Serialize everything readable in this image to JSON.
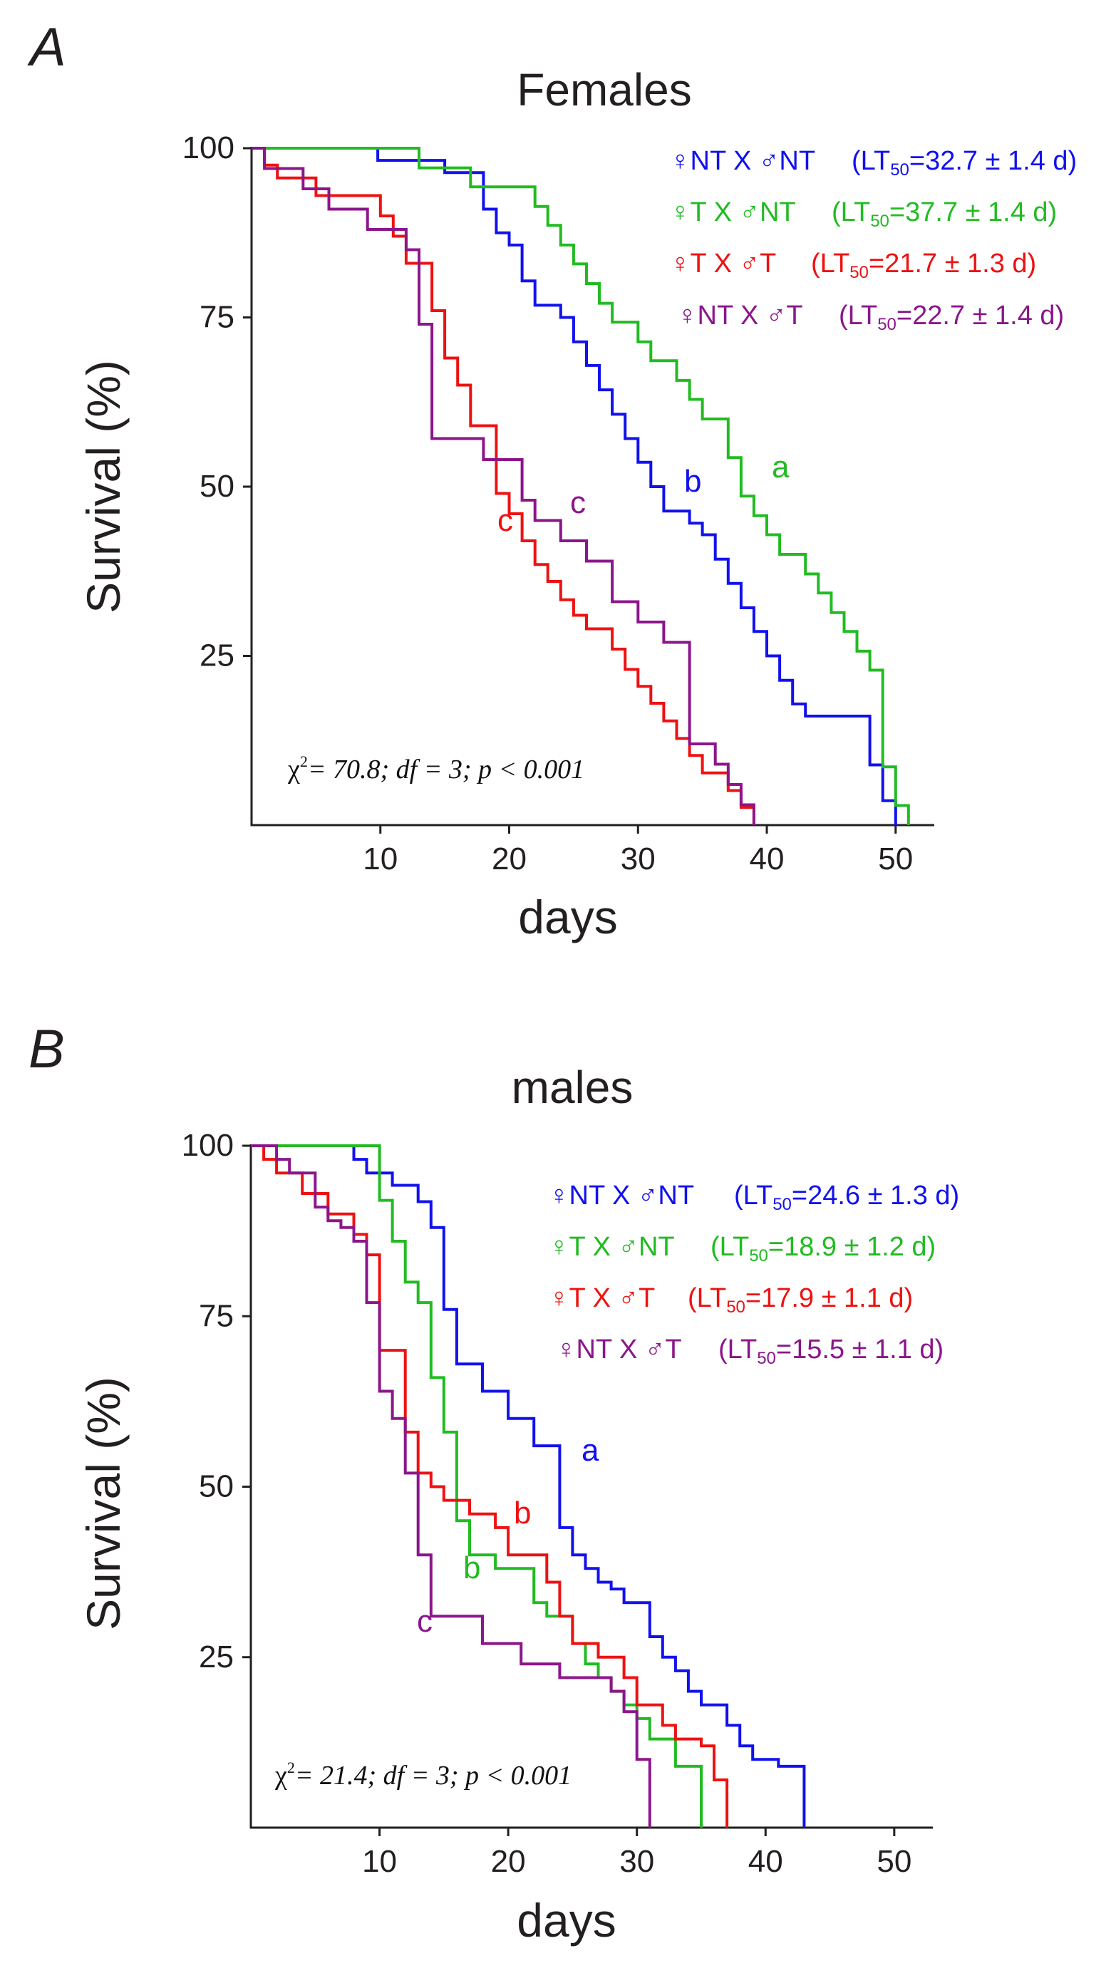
{
  "chart_data": [
    {
      "type": "line",
      "panel_label": "A",
      "title": "Females",
      "xlabel": "days",
      "ylabel": "Survival (%)",
      "xlim": [
        0,
        53
      ],
      "ylim": [
        0,
        100
      ],
      "xticks": [
        10,
        20,
        30,
        40,
        50
      ],
      "yticks": [
        25,
        50,
        75,
        100
      ],
      "grid": false,
      "legend": [
        {
          "name": "♀NT X ♂NT",
          "stat_prefix": "(LT",
          "stat_sub": "50",
          "stat_suffix": "=32.7 ± 1.4 d)",
          "color": "#1111ee"
        },
        {
          "name": "♀T X ♂NT",
          "stat_prefix": "(LT",
          "stat_sub": "50",
          "stat_suffix": "=37.7 ± 1.4 d)",
          "color": "#22bb22"
        },
        {
          "name": "♀T X ♂T",
          "stat_prefix": "(LT",
          "stat_sub": "50",
          "stat_suffix": "=21.7 ± 1.3 d)",
          "color": "#ee1111"
        },
        {
          "name": "♀NT X ♂T",
          "stat_prefix": "(LT",
          "stat_sub": "50",
          "stat_suffix": "=22.7 ± 1.4 d)",
          "color": "#8b168b"
        }
      ],
      "series": [
        {
          "name": "♀NT X ♂NT",
          "color": "#1111ee",
          "x": [
            0,
            9.8,
            15,
            18,
            19,
            20,
            21,
            22,
            24,
            25,
            26,
            27,
            28,
            29,
            30,
            31,
            32,
            34,
            35,
            36,
            37,
            38,
            39,
            40,
            41,
            42,
            43,
            47,
            48,
            49,
            50
          ],
          "y": [
            100,
            98.2,
            96.4,
            91,
            87.5,
            85.7,
            80.4,
            76.8,
            75,
            71.4,
            67.9,
            64.3,
            60.7,
            57.1,
            53.6,
            50,
            46.4,
            44.6,
            42.9,
            39.3,
            35.7,
            32.1,
            28.6,
            25,
            21.4,
            17.9,
            16.1,
            16.1,
            8.9,
            3.6,
            0
          ]
        },
        {
          "name": "♀T X ♂NT",
          "color": "#22bb22",
          "x": [
            0,
            13,
            17,
            22,
            23,
            24,
            25,
            26,
            27,
            28,
            30,
            31,
            33,
            34,
            35,
            37,
            38,
            39,
            40,
            41,
            43,
            44,
            45,
            46,
            47,
            48,
            49,
            50,
            51
          ],
          "y": [
            100,
            97.1,
            94.3,
            91.4,
            88.6,
            85.7,
            82.9,
            80,
            77.1,
            74.3,
            71.4,
            68.6,
            65.7,
            62.9,
            60,
            54.3,
            48.6,
            45.7,
            42.9,
            40,
            37.1,
            34.3,
            31.4,
            28.6,
            25.7,
            22.9,
            8.6,
            2.9,
            0
          ]
        },
        {
          "name": "♀T X ♂T",
          "color": "#ee1111",
          "x": [
            0,
            1,
            2,
            5,
            10,
            11,
            12,
            14,
            15,
            16,
            17,
            19,
            20,
            21,
            22,
            23,
            24,
            25,
            26,
            28,
            29,
            30,
            31,
            32,
            33,
            34,
            35,
            37,
            38,
            39
          ],
          "y": [
            100,
            97.5,
            95.6,
            93,
            90,
            87,
            83,
            76,
            69,
            65,
            59,
            49,
            46,
            42,
            38.5,
            36,
            33.3,
            31,
            29,
            26,
            23,
            20.5,
            18,
            15.4,
            12.8,
            10.3,
            7.7,
            5.1,
            2.6,
            0
          ]
        },
        {
          "name": "♀NT X ♂T",
          "color": "#8b168b",
          "x": [
            0,
            1,
            4,
            6,
            9,
            12,
            13,
            14,
            18,
            21,
            22,
            24,
            26,
            28,
            30,
            32,
            34,
            36,
            37,
            38,
            39
          ],
          "y": [
            100,
            97,
            94,
            91,
            88,
            85,
            74,
            57.1,
            54,
            48,
            45,
            42,
            39,
            33,
            30,
            27,
            12,
            9,
            6,
            3,
            0
          ]
        }
      ],
      "curve_labels": [
        {
          "text": "a",
          "color": "#22bb22"
        },
        {
          "text": "b",
          "color": "#1111ee"
        },
        {
          "text": "c",
          "color": "#ee1111"
        },
        {
          "text": "c",
          "color": "#8b168b"
        }
      ],
      "annotation": {
        "chi": "χ",
        "sup": "2",
        "text": "= 70.8; df = 3; p < 0.001"
      }
    },
    {
      "type": "line",
      "panel_label": "B",
      "title": "males",
      "xlabel": "days",
      "ylabel": "Survival (%)",
      "xlim": [
        0,
        53
      ],
      "ylim": [
        0,
        100
      ],
      "xticks": [
        10,
        20,
        30,
        40,
        50
      ],
      "yticks": [
        25,
        50,
        75,
        100
      ],
      "grid": false,
      "legend": [
        {
          "name": "♀NT X ♂NT",
          "stat_prefix": "(LT",
          "stat_sub": "50",
          "stat_suffix": "=24.6 ± 1.3 d)",
          "color": "#1111ee"
        },
        {
          "name": "♀T X ♂NT",
          "stat_prefix": "(LT",
          "stat_sub": "50",
          "stat_suffix": "=18.9 ± 1.2 d)",
          "color": "#22bb22"
        },
        {
          "name": "♀T X ♂T",
          "stat_prefix": "(LT",
          "stat_sub": "50",
          "stat_suffix": "=17.9 ± 1.1 d)",
          "color": "#ee1111"
        },
        {
          "name": "♀NT X ♂T",
          "stat_prefix": "(LT",
          "stat_sub": "50",
          "stat_suffix": "=15.5 ± 1.1 d)",
          "color": "#8b168b"
        }
      ],
      "series": [
        {
          "name": "♀NT X ♂NT",
          "color": "#1111ee",
          "x": [
            0,
            8,
            9,
            11,
            13,
            14,
            15,
            16,
            18,
            20,
            22,
            24,
            25,
            26,
            27,
            28,
            29,
            31,
            32,
            33,
            34,
            35,
            37,
            38,
            39,
            40,
            41,
            43
          ],
          "y": [
            100,
            98,
            96,
            94.2,
            91.8,
            88,
            76,
            68,
            64,
            60,
            56,
            44,
            40,
            38,
            36,
            35,
            33,
            28,
            25,
            23,
            20,
            18,
            15,
            12,
            10,
            10,
            9,
            0
          ]
        },
        {
          "name": "♀T X ♂NT",
          "color": "#22bb22",
          "x": [
            0,
            10,
            11,
            12,
            13,
            14,
            15,
            16,
            17,
            19,
            22,
            23,
            25,
            26,
            27,
            28,
            29,
            30,
            31,
            33,
            35
          ],
          "y": [
            100,
            92,
            86,
            80,
            77,
            66,
            58,
            45,
            40,
            38,
            33,
            31,
            27,
            24,
            22,
            20,
            18,
            16,
            13,
            9,
            0
          ]
        },
        {
          "name": "♀T X ♂T",
          "color": "#ee1111",
          "x": [
            0,
            1,
            2,
            4,
            6,
            8,
            9,
            10,
            12,
            13,
            14,
            15,
            17,
            19,
            20,
            21,
            22,
            23,
            24,
            25,
            27,
            29,
            30,
            32,
            33,
            35,
            36,
            37
          ],
          "y": [
            100,
            98,
            96,
            93,
            90,
            87,
            84,
            70,
            58,
            52,
            50,
            48,
            46,
            44,
            40,
            40,
            40,
            36,
            31,
            27,
            25,
            22,
            18,
            15,
            13,
            12,
            7,
            0
          ]
        },
        {
          "name": "♀NT X ♂T",
          "color": "#8b168b",
          "x": [
            0,
            2,
            3,
            5,
            6,
            7,
            8,
            9,
            10,
            11,
            12,
            13,
            14,
            18,
            21,
            24,
            26,
            28,
            29,
            30,
            31
          ],
          "y": [
            100,
            98,
            96,
            91,
            89,
            88,
            86,
            77,
            64,
            60,
            52,
            40,
            31,
            27,
            24,
            22,
            22,
            20,
            17,
            10,
            0
          ]
        }
      ],
      "curve_labels": [
        {
          "text": "a",
          "color": "#1111ee"
        },
        {
          "text": "b",
          "color": "#ee1111"
        },
        {
          "text": "b",
          "color": "#22bb22"
        },
        {
          "text": "c",
          "color": "#8b168b"
        }
      ],
      "annotation": {
        "chi": "χ",
        "sup": "2",
        "text": "= 21.4; df = 3; p < 0.001"
      }
    }
  ]
}
